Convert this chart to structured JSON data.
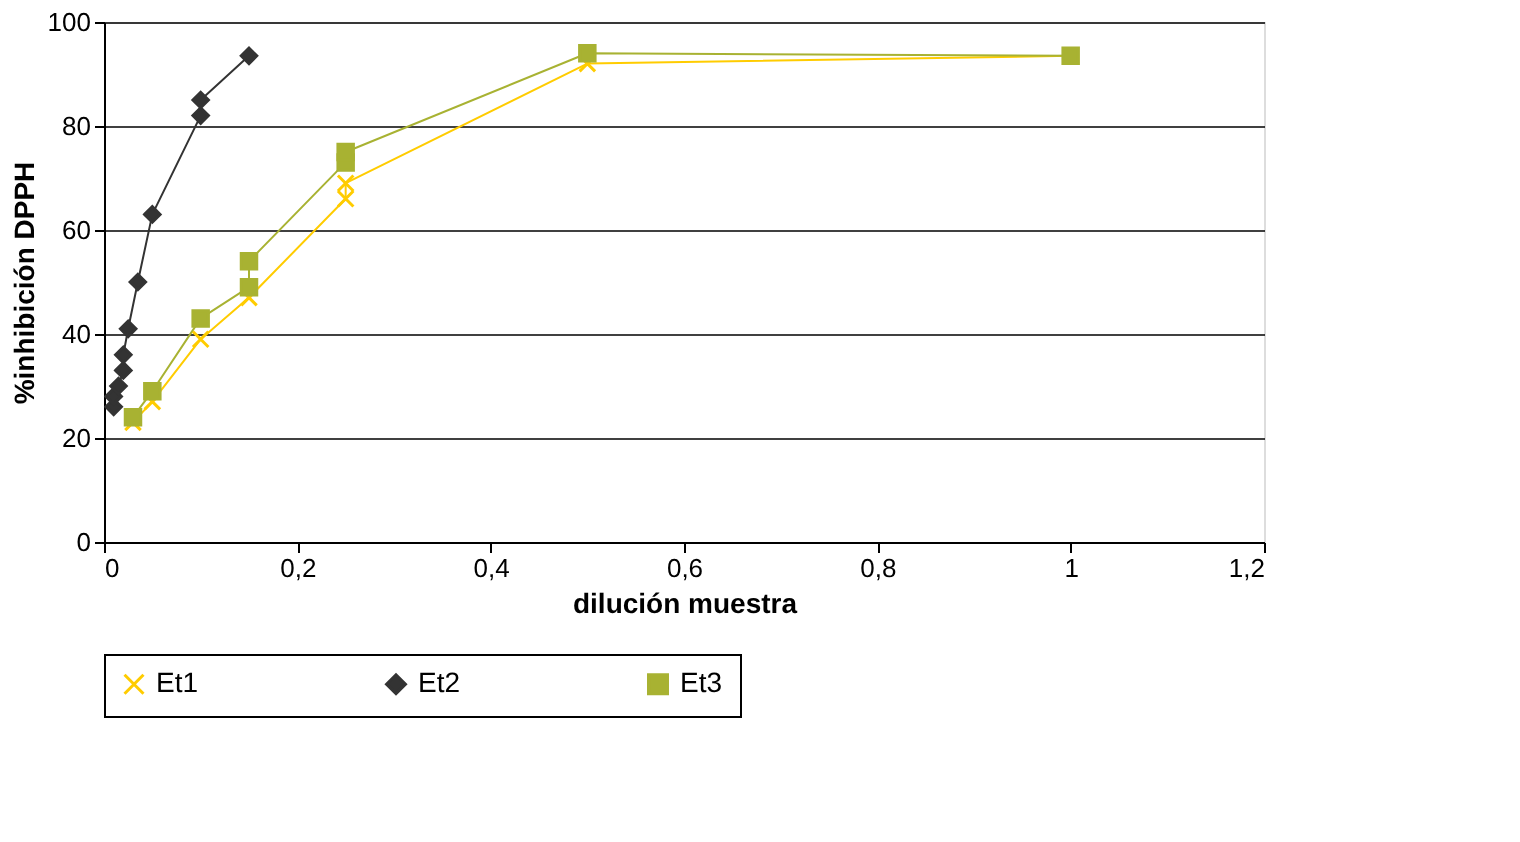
{
  "chart_data": {
    "type": "line",
    "xlabel": "dilución muestra",
    "ylabel": "%inhibición DPPH",
    "xlim": [
      0,
      1.2
    ],
    "xticks": [
      0,
      {
        "value": 0.2,
        "label": "0,2"
      },
      {
        "value": 0.4,
        "label": "0,4"
      },
      {
        "value": 0.6,
        "label": "0,6"
      },
      {
        "value": 0.8,
        "label": "0,8"
      },
      1,
      {
        "value": 1.2,
        "label": "1,2"
      }
    ],
    "ylim": [
      0,
      100
    ],
    "yticks": [
      0,
      20,
      40,
      60,
      80,
      100
    ],
    "grid": "y",
    "legend": "bottom",
    "series": [
      {
        "name": "Et1",
        "color": "#ffcc00",
        "marker": "cross",
        "line_style": "solid",
        "x": [
          0.03,
          0.05,
          0.1,
          0.15,
          0.25,
          0.25,
          0.5,
          1
        ],
        "values": [
          23,
          27,
          39,
          47,
          66,
          69,
          92,
          93.5
        ]
      },
      {
        "name": "Et2",
        "color": "#333333",
        "marker": "diamond",
        "line_style": "solid",
        "x": [
          0.01,
          0.01,
          0.015,
          0.02,
          0.02,
          0.025,
          0.035,
          0.05,
          0.1,
          0.1,
          0.15
        ],
        "values": [
          26,
          28,
          30,
          33,
          36,
          41,
          50,
          63,
          82,
          85,
          93.5
        ]
      },
      {
        "name": "Et3",
        "color": "#a8b232",
        "marker": "square",
        "line_style": "solid",
        "x": [
          0.03,
          0.05,
          0.1,
          0.15,
          0.15,
          0.25,
          0.25,
          0.5,
          1
        ],
        "values": [
          24,
          29,
          43,
          49,
          54,
          73,
          75,
          94,
          93.5
        ]
      }
    ]
  }
}
